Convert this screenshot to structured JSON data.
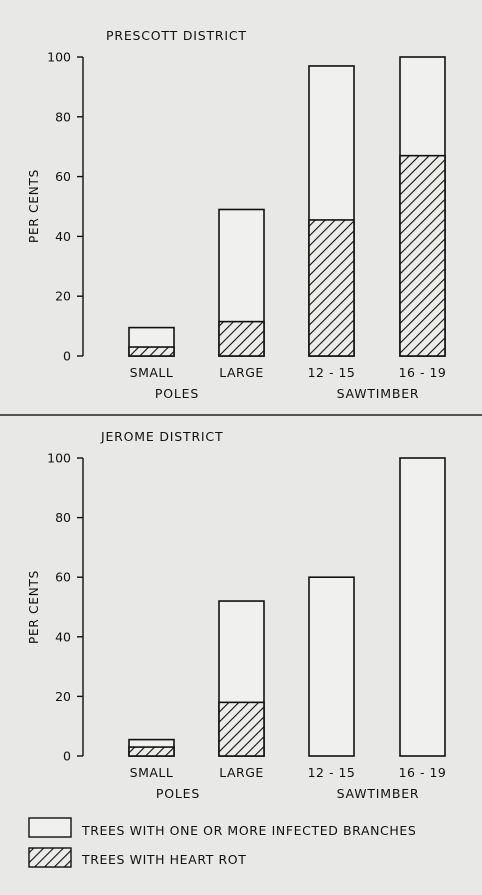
{
  "chart_data": [
    {
      "type": "bar",
      "stacked": "overlay",
      "title": "PRESCOTT DISTRICT",
      "ylabel": "PER CENTS",
      "ylim": [
        0,
        100
      ],
      "yticks": [
        0,
        20,
        40,
        60,
        80,
        100
      ],
      "categories": [
        "SMALL",
        "LARGE",
        "12 - 15",
        "16 - 19"
      ],
      "groups": [
        {
          "label": "POLES",
          "categories": [
            "SMALL",
            "LARGE"
          ]
        },
        {
          "label": "SAWTIMBER",
          "categories": [
            "12 - 15",
            "16 - 19"
          ]
        }
      ],
      "series": [
        {
          "name": "TREES WITH ONE OR MORE INFECTED BRANCHES",
          "values": [
            9.5,
            49,
            97,
            100
          ]
        },
        {
          "name": "TREES WITH HEART ROT",
          "values": [
            3,
            11.5,
            45.5,
            67
          ]
        }
      ],
      "grid": false
    },
    {
      "type": "bar",
      "stacked": "overlay",
      "title": "JEROME DISTRICT",
      "ylabel": "PER CENTS",
      "ylim": [
        0,
        100
      ],
      "yticks": [
        0,
        20,
        40,
        60,
        80,
        100
      ],
      "categories": [
        "SMALL",
        "LARGE",
        "12 - 15",
        "16 - 19"
      ],
      "groups": [
        {
          "label": "POLES",
          "categories": [
            "SMALL",
            "LARGE"
          ]
        },
        {
          "label": "SAWTIMBER",
          "categories": [
            "12 - 15",
            "16 - 19"
          ]
        }
      ],
      "series": [
        {
          "name": "TREES WITH ONE OR MORE INFECTED BRANCHES",
          "values": [
            5.5,
            52,
            60,
            100
          ]
        },
        {
          "name": "TREES WITH HEART ROT",
          "values": [
            3,
            18,
            0,
            0
          ]
        }
      ],
      "grid": false
    }
  ],
  "legend": {
    "position": "bottom",
    "items": [
      {
        "label": "TREES WITH ONE OR MORE INFECTED BRANCHES",
        "pattern": "plain"
      },
      {
        "label": "TREES WITH HEART ROT",
        "pattern": "hatched"
      }
    ]
  }
}
